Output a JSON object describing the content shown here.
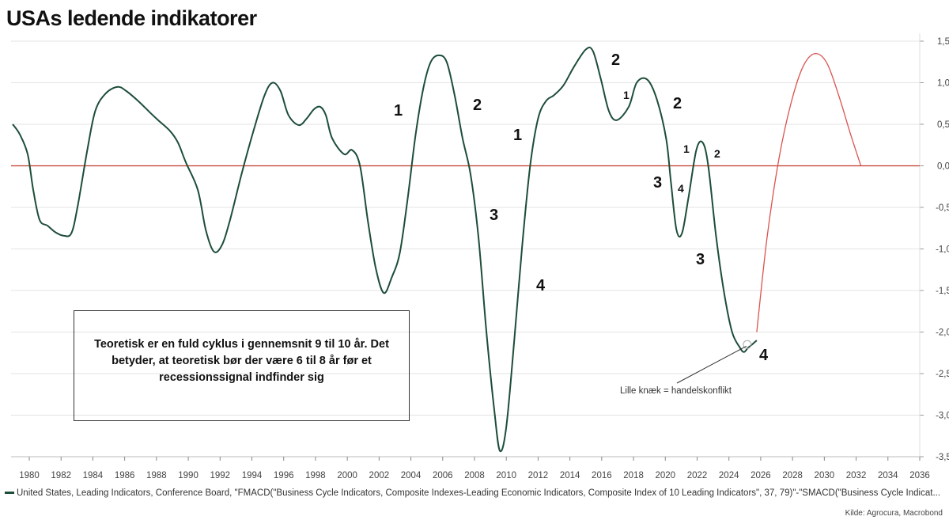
{
  "title": "USAs ledende indikatorer",
  "note_box": "Teoretisk er en fuld cyklus i gennemsnit 9 til 10 år. Det betyder, at teoretisk bør der være 6 til 8 år før et recessionssignal indfinder sig",
  "callout": "Lille knæk = handelskonflikt",
  "legend": "United States, Leading Indicators, Conference Board, \"FMACD(\"Business Cycle Indicators, Composite Indexes-Leading Economic Indicators, Composite Index of 10 Leading Indicators\", 37, 79)\"-\"SMACD(\"Business Cycle Indicat...",
  "source": "Kilde: Agrocura, Macrobond",
  "annotations": [
    "1",
    "2",
    "1",
    "3",
    "4",
    "2",
    "1",
    "2",
    "3",
    "1",
    "2",
    "4",
    "3",
    "4"
  ],
  "colors": {
    "series": "#1d4d39",
    "projection": "#d9534f",
    "zero_line": "#c0392b"
  },
  "chart_data": {
    "type": "line",
    "title": "USAs ledende indikatorer",
    "xlim": [
      1979,
      2036
    ],
    "ylim": [
      -3.5,
      1.5
    ],
    "x_ticks": [
      "1980",
      "1982",
      "1984",
      "1986",
      "1988",
      "1990",
      "1992",
      "1994",
      "1996",
      "1998",
      "2000",
      "2002",
      "2004",
      "2006",
      "2008",
      "2010",
      "2012",
      "2014",
      "2016",
      "2018",
      "2020",
      "2022",
      "2024",
      "2026",
      "2028",
      "2030",
      "2032",
      "2034",
      "2036"
    ],
    "y_ticks": [
      "1,5",
      "1,0",
      "0,5",
      "0,0",
      "-0,5",
      "-1,0",
      "-1,5",
      "-2,0",
      "-2,5",
      "-3,0",
      "-3,5"
    ],
    "y_axis_position": "right",
    "grid": true,
    "series": [
      {
        "x": [
          1978.96,
          1979.4,
          1979.9,
          1980.25,
          1980.65,
          1981.15,
          1981.65,
          1982.15,
          1982.65,
          1983.05,
          1983.65,
          1984.15,
          1984.8,
          1985.55,
          1986.1,
          1986.85,
          1987.6,
          1988.1,
          1988.85,
          1989.35,
          1989.85,
          1990.6,
          1991.1,
          1991.6,
          1992.1,
          1992.6,
          1993.35,
          1994.1,
          1994.8,
          1995.3,
          1995.8,
          1996.3,
          1996.95,
          1997.45,
          1997.9,
          1998.3,
          1998.65,
          1999.05,
          1999.8,
          2000.3,
          2000.8,
          2001.3,
          2001.8,
          2002.3,
          2002.8,
          2003.3,
          2003.8,
          2004.3,
          2004.8,
          2005.25,
          2005.75,
          2006.25,
          2006.75,
          2007.25,
          2007.75,
          2008.25,
          2008.75,
          2009.25,
          2009.6,
          2010.0,
          2010.5,
          2011.0,
          2011.5,
          2012.0,
          2012.5,
          2013.0,
          2013.6,
          2014.25,
          2015.0,
          2015.45,
          2015.95,
          2016.45,
          2016.95,
          2017.7,
          2018.2,
          2018.85,
          2019.45,
          2020.05,
          2020.35,
          2020.7,
          2021.05,
          2021.45,
          2021.95,
          2022.35,
          2022.7,
          2023.2,
          2023.7,
          2024.2,
          2024.7,
          2024.95,
          2025.2,
          2025.4,
          2025.75
        ],
        "y": [
          0.5,
          0.38,
          0.14,
          -0.29,
          -0.65,
          -0.72,
          -0.8,
          -0.84,
          -0.81,
          -0.48,
          0.19,
          0.66,
          0.87,
          0.95,
          0.9,
          0.78,
          0.64,
          0.55,
          0.42,
          0.28,
          0.04,
          -0.29,
          -0.77,
          -1.03,
          -0.96,
          -0.67,
          -0.1,
          0.42,
          0.85,
          1.0,
          0.9,
          0.61,
          0.49,
          0.57,
          0.68,
          0.71,
          0.61,
          0.33,
          0.14,
          0.19,
          0.0,
          -0.67,
          -1.24,
          -1.53,
          -1.34,
          -1.05,
          -0.39,
          0.38,
          0.95,
          1.25,
          1.33,
          1.25,
          0.85,
          0.33,
          -0.1,
          -0.86,
          -2.0,
          -2.95,
          -3.43,
          -3.14,
          -2.1,
          -0.96,
          0.0,
          0.57,
          0.78,
          0.85,
          0.97,
          1.19,
          1.4,
          1.38,
          1.04,
          0.66,
          0.55,
          0.71,
          1.0,
          1.04,
          0.81,
          0.33,
          -0.19,
          -0.77,
          -0.81,
          -0.39,
          0.19,
          0.28,
          0.0,
          -0.86,
          -1.53,
          -2.0,
          -2.19,
          -2.24,
          -2.19,
          -2.16,
          -2.1
        ]
      },
      {
        "x": [
          2025.75,
          2026.4,
          2027.15,
          2027.9,
          2028.65,
          2029.4,
          2030.15,
          2030.9,
          2031.65,
          2032.3
        ],
        "y": [
          -2.0,
          -0.86,
          0.09,
          0.75,
          1.19,
          1.35,
          1.24,
          0.85,
          0.38,
          0.0
        ]
      }
    ]
  }
}
